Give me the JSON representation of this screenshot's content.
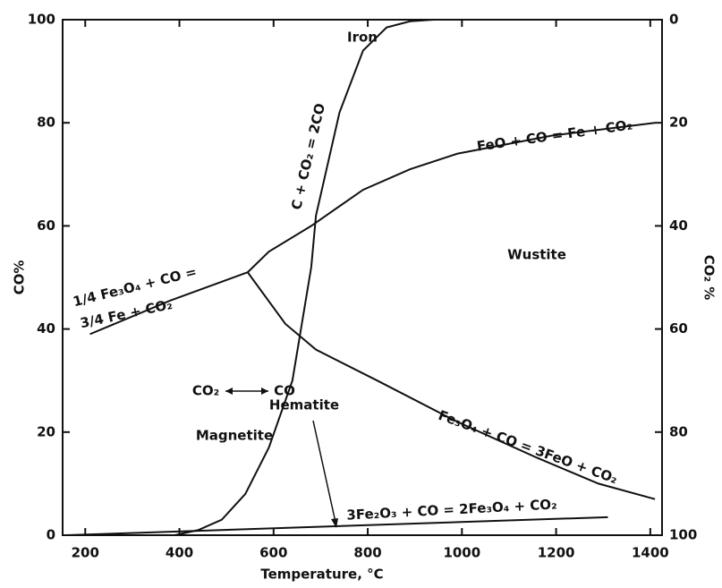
{
  "chart_data": {
    "type": "line",
    "x_label": "Temperature, °C",
    "y_label": "CO%",
    "y2_label": "CO₂ %",
    "xlim": [
      152,
      1425
    ],
    "xticks": [
      200,
      400,
      600,
      800,
      1000,
      1200,
      1400
    ],
    "ylim": [
      0,
      100
    ],
    "yticks": [
      0,
      20,
      40,
      60,
      80,
      100
    ],
    "y2lim": [
      100,
      0
    ],
    "y2ticks": [
      0,
      20,
      40,
      60,
      80,
      100
    ],
    "series": [
      {
        "color": "#111111",
        "x": [
          390,
          440,
          490,
          540,
          590,
          640,
          680,
          690,
          740,
          790,
          840,
          890,
          940,
          1000
        ],
        "values": [
          0,
          1,
          3,
          8,
          17,
          30,
          52,
          62,
          82,
          94,
          98.5,
          99.7,
          100,
          100
        ]
      },
      {
        "color": "#111111",
        "x": [
          210,
          380,
          545
        ],
        "values": [
          39,
          45.5,
          51
        ]
      },
      {
        "color": "#111111",
        "x": [
          545,
          590,
          680,
          790,
          890,
          990,
          1190,
          1410
        ],
        "values": [
          51,
          55,
          60,
          67,
          71,
          74,
          77.5,
          80
        ]
      },
      {
        "color": "#111111",
        "x": [
          545,
          625,
          690,
          820,
          990,
          1160,
          1290,
          1410
        ],
        "values": [
          51,
          41,
          36,
          30,
          22,
          15,
          10,
          7
        ]
      },
      {
        "color": "#111111",
        "x": [
          160,
          1310
        ],
        "values": [
          0,
          3.5
        ]
      }
    ],
    "annotations": [
      "Iron",
      "C + CO₂ = 2CO",
      "FeO + CO = Fe + CO₂",
      "1/4 Fe₃O₄ + CO =",
      "3/4 Fe + CO₂",
      "Wustite",
      "CO₂",
      "CO",
      "Magnetite",
      "Fe₃O₄ + CO = 3FeO + CO₂",
      "Hematite",
      "3Fe₂O₃ + CO = 2Fe₃O₄ + CO₂"
    ]
  }
}
